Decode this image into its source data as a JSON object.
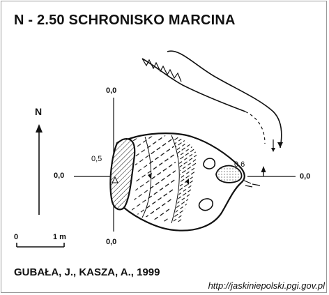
{
  "title": "N - 2.50  SCHRONISKO MARCINA",
  "north_label": "N",
  "section_labels": {
    "top": "0,0",
    "bottom": "0,0",
    "left": "0,0",
    "right": "0,0"
  },
  "depth_labels": {
    "left": "0,5",
    "right": "0,6"
  },
  "scale_bar": {
    "start_label": "0",
    "end_label": "1 m"
  },
  "authors": "GUBAŁA, J., KASZA, A., 1999",
  "source_url": "http://jaskiniepolski.pgi.gov.pl",
  "colors": {
    "ink": "#111111",
    "frame": "#9a9a9a",
    "background": "#ffffff"
  }
}
